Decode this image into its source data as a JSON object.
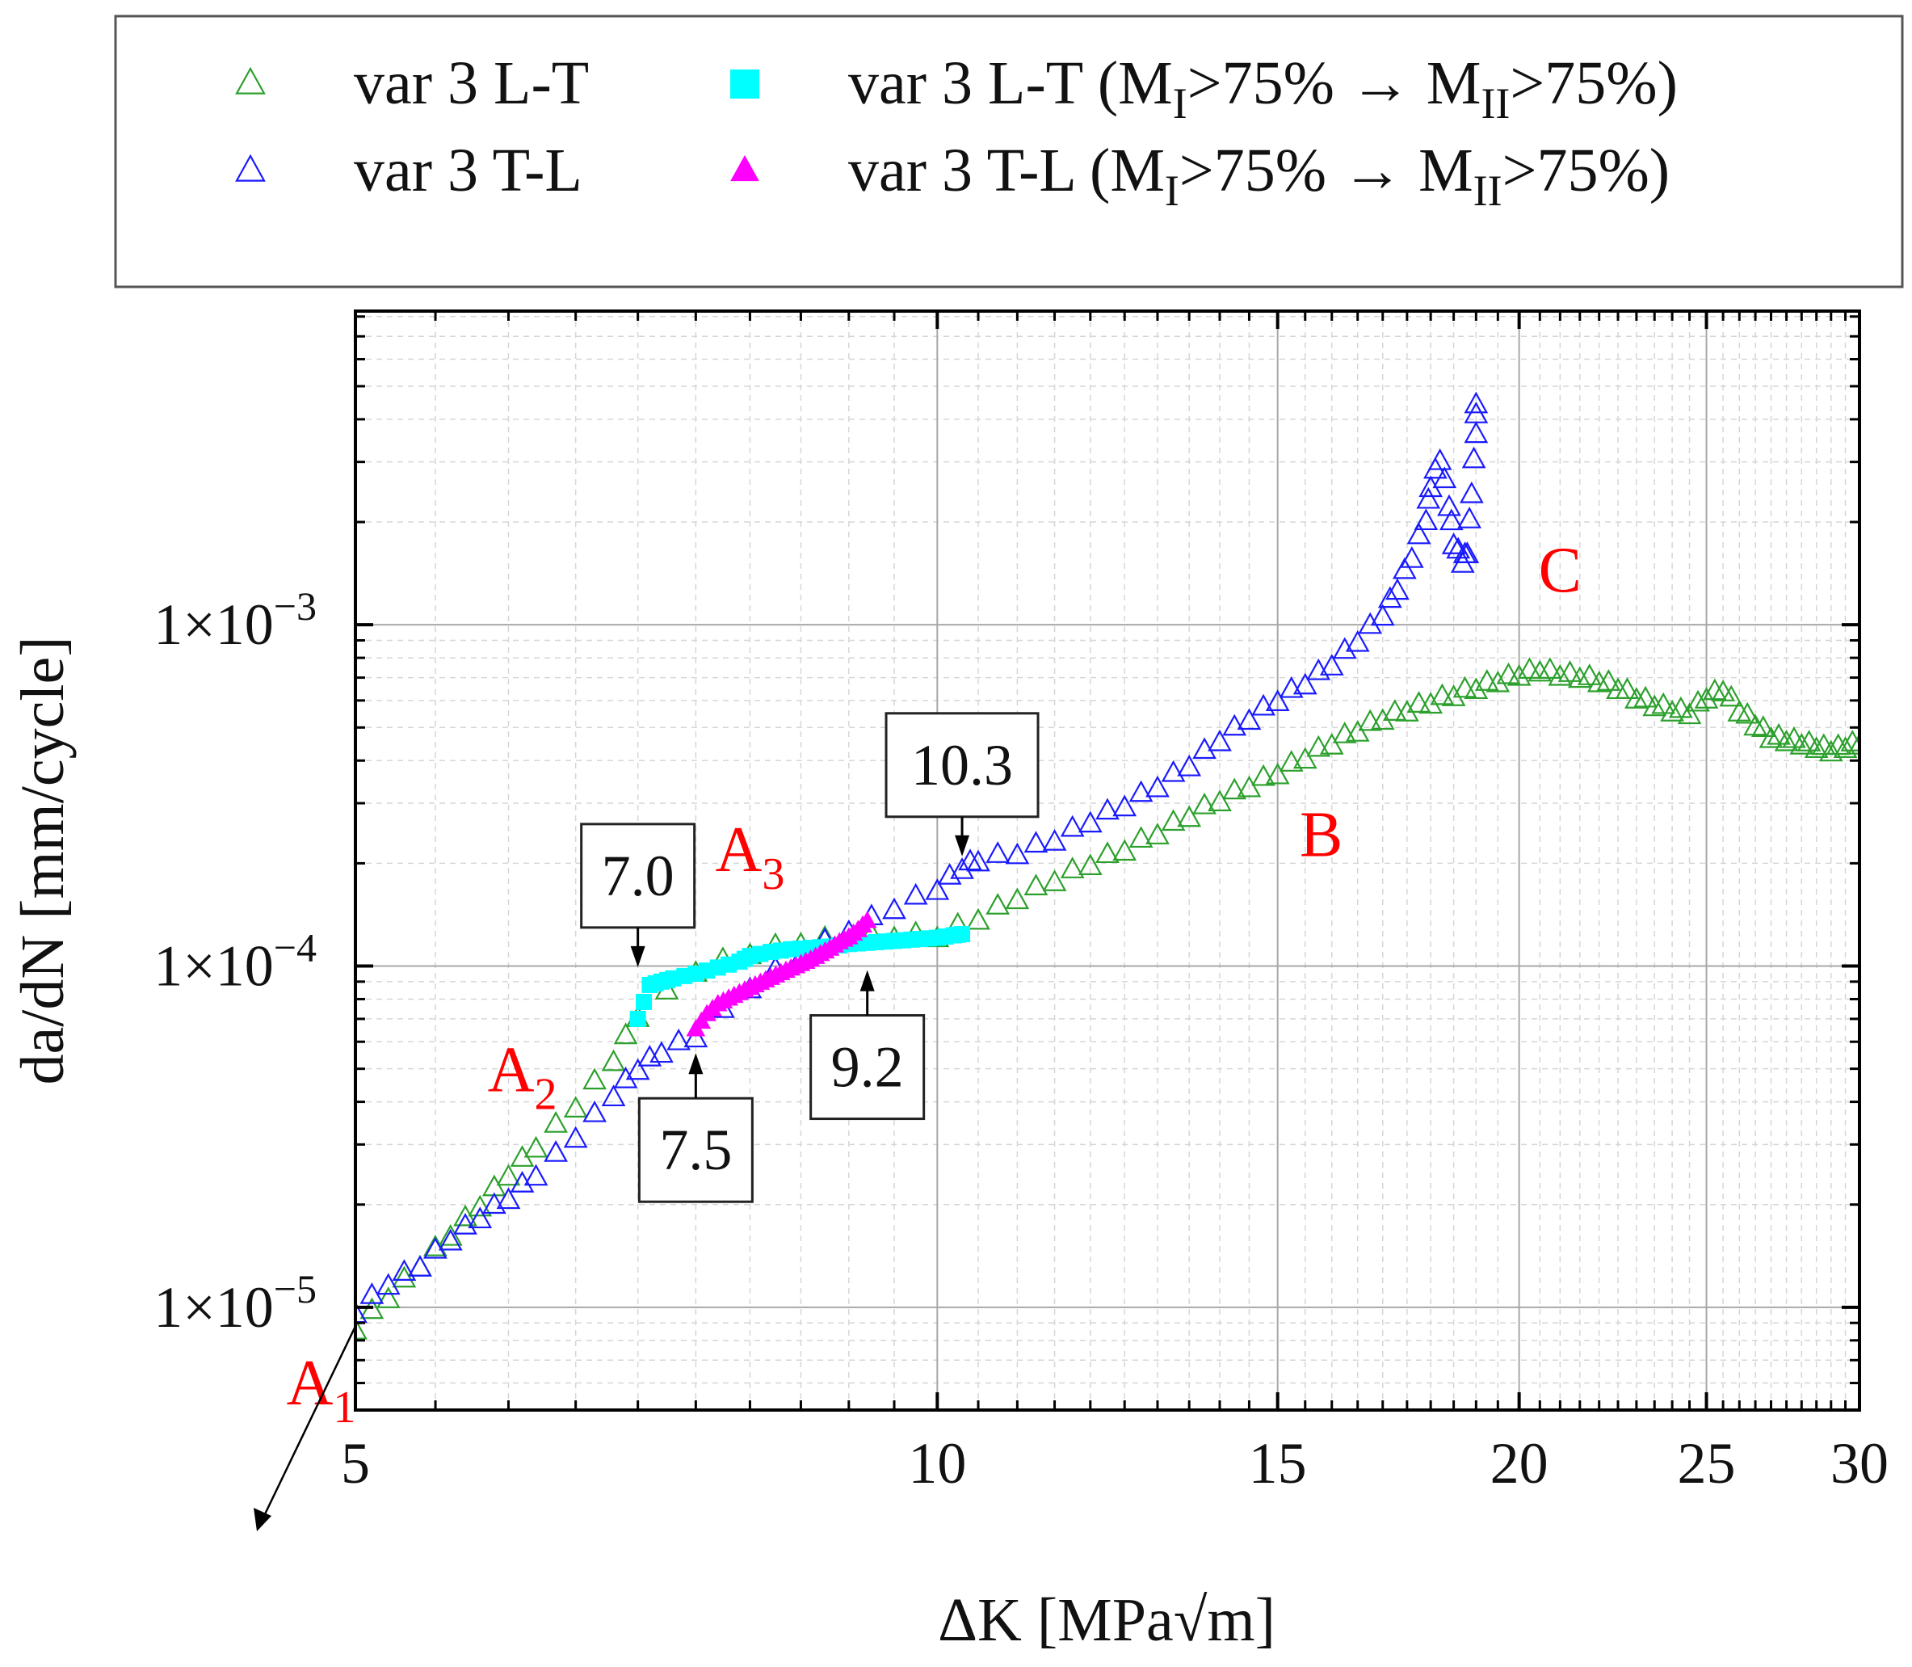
{
  "chart_data": {
    "type": "scatter",
    "xlabel": "ΔK [MPa√m]",
    "ylabel": "da/dN [mm/cycle]",
    "xscale": "log",
    "yscale": "log",
    "xlim": [
      5,
      30
    ],
    "ylim": [
      5e-06,
      0.0083
    ],
    "x_ticks": [
      5,
      10,
      15,
      20,
      25,
      30
    ],
    "y_ticks": [
      {
        "value": 1e-05,
        "mant": "1×10",
        "exp": "−5"
      },
      {
        "value": 0.0001,
        "mant": "1×10",
        "exp": "−4"
      },
      {
        "value": 0.001,
        "mant": "1×10",
        "exp": "−3"
      }
    ],
    "grid": true,
    "colors": {
      "lt": "#2ca02c",
      "tl": "#1a1aff",
      "lt_mode": "#00ffff",
      "tl_mode": "#ff00ff",
      "annot": "#ff0000"
    },
    "legend": {
      "entries": [
        {
          "id": "lt",
          "text": "var 3 L-T",
          "marker": "open-triangle",
          "color": "#2ca02c"
        },
        {
          "id": "lt_mode",
          "text_pre": "var 3 L-T (M",
          "sub1": "I",
          "text_mid": ">75% → M",
          "sub2": "II",
          "text_post": ">75%)",
          "marker": "filled-square",
          "color": "#00ffff"
        },
        {
          "id": "tl",
          "text": "var 3 T-L",
          "marker": "open-triangle",
          "color": "#1a1aff"
        },
        {
          "id": "tl_mode",
          "text_pre": "var 3 T-L (M",
          "sub1": "I",
          "text_mid": ">75% → M",
          "sub2": "II",
          "text_post": ">75%)",
          "marker": "filled-triangle",
          "color": "#ff00ff"
        }
      ]
    },
    "series": [
      {
        "name": "var 3 L-T",
        "marker": "open-triangle",
        "color": "#2ca02c",
        "x": [
          5.0,
          5.2,
          5.4,
          5.6,
          5.8,
          6.0,
          6.2,
          6.5,
          6.8,
          7.0,
          7.5,
          8.0,
          8.5,
          9.0,
          9.5,
          10.0,
          10.5,
          11.0,
          11.5,
          12.0,
          12.5,
          13.0,
          13.5,
          14.0,
          14.5,
          15.0,
          15.5,
          16.0,
          16.5,
          17.0,
          17.5,
          18.0,
          18.5,
          19.0,
          19.5,
          20.0,
          20.5,
          21.0,
          21.5,
          22.0,
          22.5,
          23.0,
          23.5,
          24.0,
          24.5,
          25.0,
          25.5,
          26.0,
          26.5,
          27.0,
          27.5,
          28.0,
          28.5,
          29.0,
          29.5,
          30.0
        ],
        "y": [
          8.5e-06,
          1.05e-05,
          1.3e-05,
          1.6e-05,
          1.95e-05,
          2.4e-05,
          2.9e-05,
          3.8e-05,
          5.2e-05,
          7e-05,
          9.5e-05,
          0.000107,
          0.000115,
          0.000118,
          0.00012,
          0.00012,
          0.000135,
          0.000155,
          0.000175,
          0.000195,
          0.000215,
          0.00024,
          0.00027,
          0.0003,
          0.00033,
          0.00036,
          0.0004,
          0.00044,
          0.00048,
          0.00052,
          0.00055,
          0.00058,
          0.00061,
          0.00064,
          0.00067,
          0.0007,
          0.00072,
          0.0007,
          0.00069,
          0.00067,
          0.00064,
          0.0006,
          0.00057,
          0.00055,
          0.00054,
          0.0006,
          0.00063,
          0.00055,
          0.0005,
          0.00046,
          0.00045,
          0.00044,
          0.00043,
          0.00042,
          0.00043,
          0.00044
        ]
      },
      {
        "name": "var 3 T-L",
        "marker": "open-triangle",
        "color": "#1a1aff",
        "x": [
          5.0,
          5.2,
          5.4,
          5.6,
          5.8,
          6.0,
          6.2,
          6.5,
          6.8,
          7.0,
          7.2,
          7.5,
          8.0,
          8.5,
          9.0,
          9.5,
          10.0,
          10.3,
          10.5,
          11.0,
          11.5,
          12.0,
          12.5,
          13.0,
          13.5,
          14.0,
          14.5,
          15.0,
          15.5,
          16.0,
          16.5,
          17.0,
          17.3,
          17.6,
          17.9,
          18.0,
          18.2,
          18.4,
          18.5,
          18.7,
          18.8,
          18.9,
          19.0,
          19.0
        ],
        "y": [
          9.5e-06,
          1.15e-05,
          1.3e-05,
          1.55e-05,
          1.8e-05,
          2.05e-05,
          2.4e-05,
          3.1e-05,
          4.1e-05,
          4.9e-05,
          5.5e-05,
          6.1e-05,
          8.5e-05,
          0.000105,
          0.000125,
          0.000145,
          0.000165,
          0.00019,
          0.0002,
          0.00021,
          0.00023,
          0.00026,
          0.00029,
          0.00033,
          0.00038,
          0.00045,
          0.00052,
          0.00059,
          0.00066,
          0.00075,
          0.00088,
          0.00105,
          0.00125,
          0.00155,
          0.002,
          0.0025,
          0.003,
          0.0022,
          0.0017,
          0.0015,
          0.0016,
          0.0024,
          0.0036,
          0.0044
        ]
      },
      {
        "name": "var 3 L-T (MI>75% → MII>75%)",
        "marker": "filled-square",
        "color": "#00ffff",
        "x": [
          7.0,
          7.1,
          7.2,
          7.3,
          7.5,
          7.7,
          7.9,
          8.0,
          8.2,
          8.4,
          8.6,
          8.8,
          9.0,
          9.2,
          9.4,
          9.6,
          9.8,
          10.0,
          10.2,
          10.3
        ],
        "y": [
          7e-05,
          8.8e-05,
          9e-05,
          9.2e-05,
          9.5e-05,
          9.9e-05,
          0.000103,
          0.000107,
          0.00011,
          0.000112,
          0.000113,
          0.000114,
          0.000116,
          0.000117,
          0.000118,
          0.000119,
          0.00012,
          0.000121,
          0.000123,
          0.000124
        ]
      },
      {
        "name": "var 3 T-L (MI>75% → MII>75%)",
        "marker": "filled-triangle",
        "color": "#ff00ff",
        "x": [
          7.5,
          7.6,
          7.7,
          7.8,
          7.9,
          8.0,
          8.1,
          8.2,
          8.3,
          8.4,
          8.5,
          8.6,
          8.7,
          8.8,
          8.9,
          9.0,
          9.1,
          9.2
        ],
        "y": [
          6.5e-05,
          7.2e-05,
          7.7e-05,
          8e-05,
          8.3e-05,
          8.6e-05,
          8.9e-05,
          9.2e-05,
          9.5e-05,
          9.8e-05,
          0.000101,
          0.000104,
          0.000108,
          0.000112,
          0.000117,
          0.000121,
          0.000127,
          0.000135
        ]
      }
    ],
    "callouts": [
      {
        "text": "7.0",
        "x": 7.0,
        "y": 9e-05,
        "side": "above"
      },
      {
        "text": "7.5",
        "x": 7.5,
        "y": 6e-05,
        "side": "below"
      },
      {
        "text": "9.2",
        "x": 9.2,
        "y": 0.000105,
        "side": "below"
      },
      {
        "text": "10.3",
        "x": 10.3,
        "y": 0.00019,
        "side": "above"
      }
    ],
    "regions": [
      {
        "text": "A",
        "sub": "1",
        "x": 4.8,
        "y": 5.2e-06
      },
      {
        "text": "A",
        "sub": "2",
        "x": 6.1,
        "y": 4.3e-05
      },
      {
        "text": "A",
        "sub": "3",
        "x": 8.0,
        "y": 0.00019
      },
      {
        "text": "B",
        "x": 15.8,
        "y": 0.00021
      },
      {
        "text": "C",
        "x": 21.0,
        "y": 0.00125
      }
    ]
  }
}
